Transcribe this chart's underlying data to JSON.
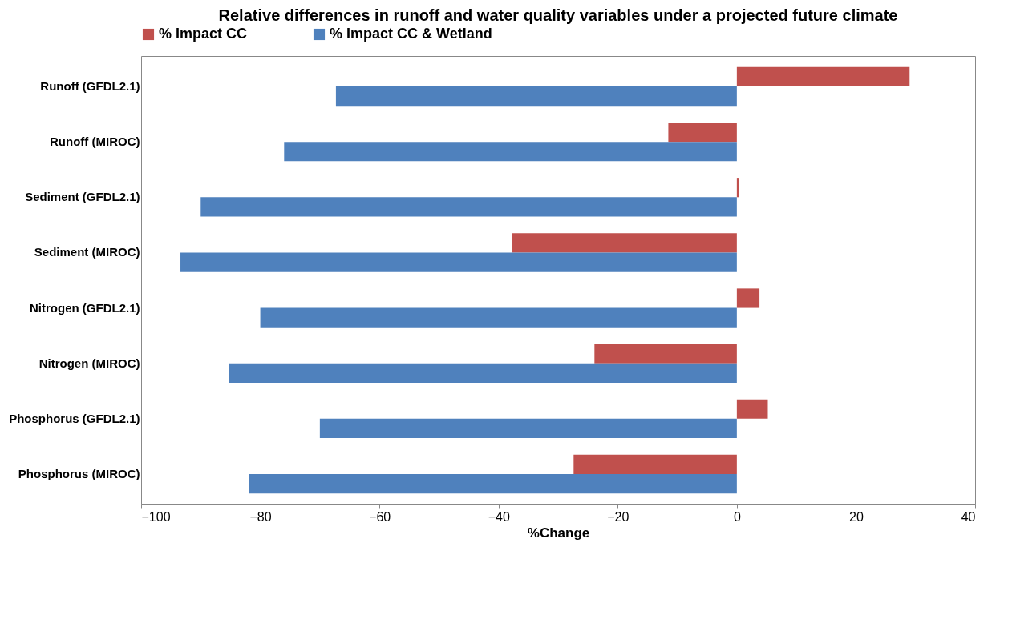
{
  "chart_data": {
    "type": "bar",
    "orientation": "horizontal",
    "title": "Relative differences in runoff and water quality variables under a projected future climate",
    "xlabel": "%Change",
    "categories": [
      "Runoff (GFDL2.1)",
      "Runoff (MIROC)",
      "Sediment  (GFDL2.1)",
      "Sediment (MIROC)",
      "Nitrogen (GFDL2.1)",
      "Nitrogen (MIROC)",
      "Phosphorus (GFDL2.1)",
      "Phosphorus (MIROC)"
    ],
    "series": [
      {
        "name": "% Impact CC",
        "color": "#c0504d",
        "values": [
          29,
          -11.5,
          0.4,
          -37.8,
          3.8,
          -23.9,
          5.2,
          -27.4
        ]
      },
      {
        "name": "% Impact CC & Wetland",
        "color": "#4f81bd",
        "values": [
          -67.3,
          -76,
          -90,
          -93.4,
          -80,
          -85.3,
          -70,
          -81.9
        ]
      }
    ],
    "xlim": [
      -100,
      40
    ],
    "xticks": [
      -100,
      -80,
      -60,
      -40,
      -20,
      0,
      20,
      40
    ],
    "grid": false,
    "legend": "top"
  }
}
